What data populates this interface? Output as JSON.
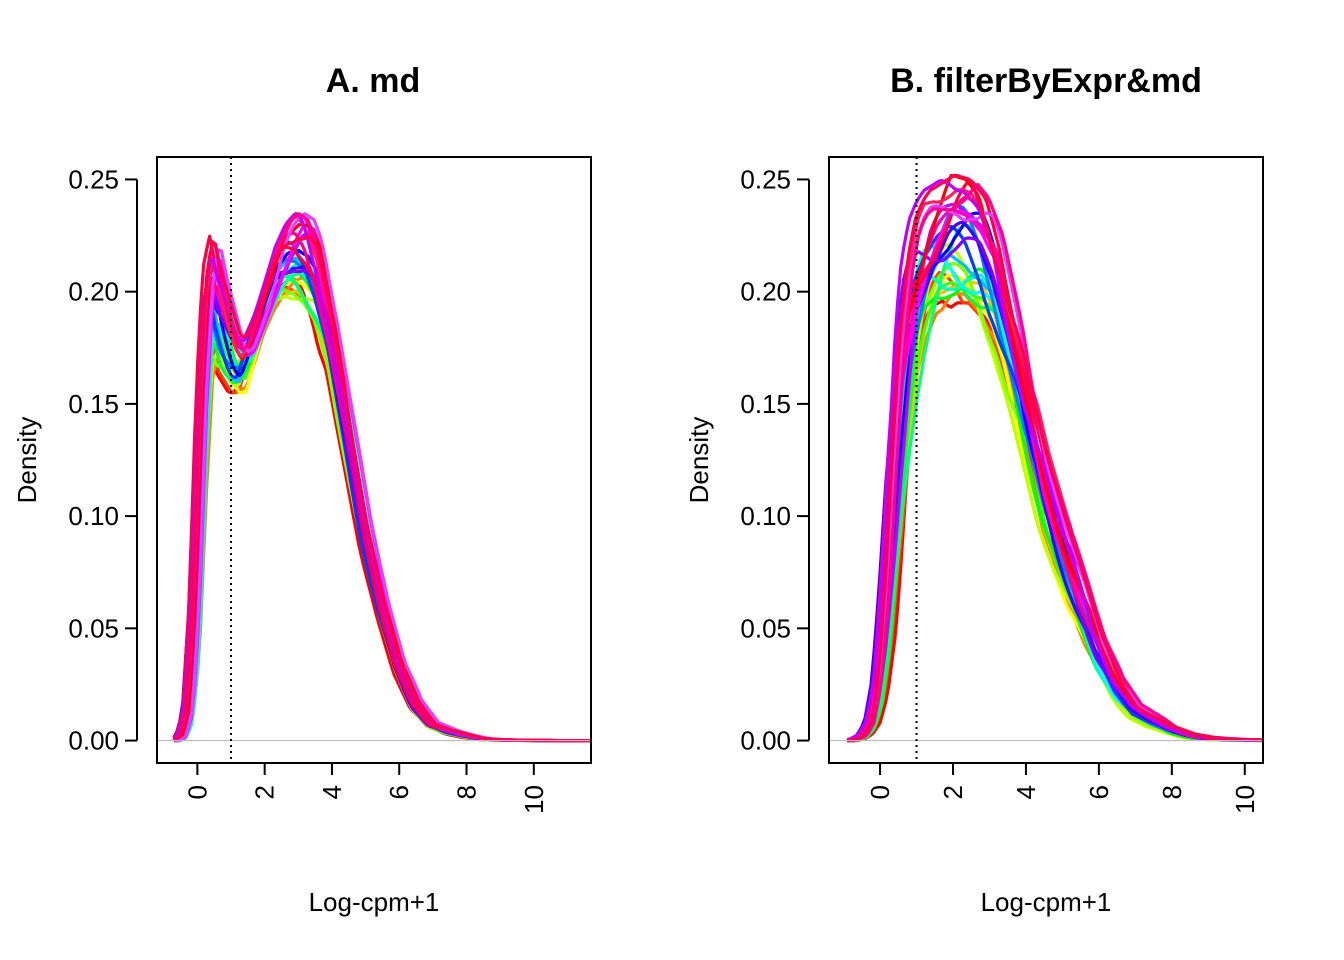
{
  "chart_data": [
    {
      "type": "line",
      "title": "A. md",
      "xlabel": "Log-cpm+1",
      "ylabel": "Density",
      "xlim": [
        -1.2,
        11.7
      ],
      "ylim": [
        -0.01,
        0.26
      ],
      "xticks": [
        0,
        2,
        4,
        6,
        8,
        10
      ],
      "xtick_labels": [
        "0",
        "2",
        "4",
        "6",
        "8",
        "10"
      ],
      "yticks": [
        0.0,
        0.05,
        0.1,
        0.15,
        0.2,
        0.25
      ],
      "ytick_labels": [
        "0.00",
        "0.05",
        "0.10",
        "0.15",
        "0.20",
        "0.25"
      ],
      "vline": 1,
      "vline_style": "dotted",
      "hline": 0,
      "hline_color": "#bebebe",
      "series_count": 30,
      "colors": [
        "#ff0000",
        "#ff4000",
        "#ff8000",
        "#ffbf00",
        "#ffff00",
        "#bfff00",
        "#80ff00",
        "#40ff00",
        "#00ff00",
        "#00ff40",
        "#00ff80",
        "#00ffbf",
        "#00ffff",
        "#00bfff",
        "#0080ff",
        "#0040ff",
        "#0000ff",
        "#4000ff",
        "#8000ff",
        "#bf00ff",
        "#ff00ff",
        "#ff00bf",
        "#ff0080",
        "#ff0040",
        "#ff0000",
        "#ff2060",
        "#e040ff",
        "#c000ff",
        "#ff0090",
        "#ff0050"
      ],
      "x": [
        -0.7,
        -0.5,
        -0.3,
        -0.1,
        0.1,
        0.3,
        0.5,
        0.7,
        0.9,
        1.1,
        1.3,
        1.5,
        1.8,
        2.1,
        2.4,
        2.7,
        3.0,
        3.3,
        3.6,
        4.0,
        4.5,
        5.0,
        5.5,
        6.0,
        6.5,
        7.0,
        7.5,
        8.0,
        8.5,
        9.0,
        9.5,
        10.0,
        10.5,
        11.0,
        11.7
      ],
      "envelope_low": [
        0.0,
        0.001,
        0.008,
        0.04,
        0.11,
        0.165,
        0.175,
        0.165,
        0.16,
        0.155,
        0.155,
        0.165,
        0.18,
        0.19,
        0.196,
        0.198,
        0.196,
        0.19,
        0.182,
        0.165,
        0.125,
        0.085,
        0.055,
        0.03,
        0.014,
        0.006,
        0.003,
        0.0015,
        0.0005,
        0.0002,
        0.0001,
        0.0,
        0.0,
        0.0,
        0.0
      ],
      "envelope_high": [
        0.0,
        0.002,
        0.015,
        0.07,
        0.16,
        0.21,
        0.225,
        0.21,
        0.2,
        0.19,
        0.18,
        0.18,
        0.19,
        0.205,
        0.22,
        0.23,
        0.235,
        0.232,
        0.22,
        0.19,
        0.145,
        0.1,
        0.065,
        0.036,
        0.018,
        0.008,
        0.005,
        0.003,
        0.001,
        0.0004,
        0.0002,
        0.0001,
        0.0,
        0.0,
        0.0
      ],
      "peak_1": {
        "x": 0.5,
        "y": 0.225
      },
      "peak_2": {
        "x": 3.2,
        "y": 0.235
      },
      "trough": {
        "x": 1.3,
        "y": 0.16
      }
    },
    {
      "type": "line",
      "title": "B. filterByExpr&md",
      "xlabel": "Log-cpm+1",
      "ylabel": "Density",
      "xlim": [
        -1.4,
        10.5
      ],
      "ylim": [
        -0.01,
        0.26
      ],
      "xticks": [
        0,
        2,
        4,
        6,
        8,
        10
      ],
      "xtick_labels": [
        "0",
        "2",
        "4",
        "6",
        "8",
        "10"
      ],
      "yticks": [
        0.0,
        0.05,
        0.1,
        0.15,
        0.2,
        0.25
      ],
      "ytick_labels": [
        "0.00",
        "0.05",
        "0.10",
        "0.15",
        "0.20",
        "0.25"
      ],
      "vline": 1,
      "vline_style": "dotted",
      "hline": 0,
      "hline_color": "#bebebe",
      "series_count": 30,
      "colors": [
        "#ff0000",
        "#ff4000",
        "#ff8000",
        "#ffbf00",
        "#ffff00",
        "#bfff00",
        "#80ff00",
        "#40ff00",
        "#00ff00",
        "#00ff40",
        "#00ff80",
        "#00ffbf",
        "#00ffff",
        "#00bfff",
        "#0080ff",
        "#0040ff",
        "#0000ff",
        "#4000ff",
        "#8000ff",
        "#bf00ff",
        "#ff00ff",
        "#ff00bf",
        "#ff0080",
        "#ff0040",
        "#ff0000",
        "#ff2060",
        "#e040ff",
        "#c000ff",
        "#ff0090",
        "#ff0050"
      ],
      "x": [
        -0.9,
        -0.7,
        -0.5,
        -0.3,
        -0.1,
        0.1,
        0.3,
        0.5,
        0.7,
        0.9,
        1.1,
        1.3,
        1.6,
        2.0,
        2.4,
        2.8,
        3.2,
        3.6,
        4.0,
        4.5,
        5.0,
        5.5,
        6.0,
        6.5,
        7.0,
        7.5,
        8.0,
        8.5,
        9.0,
        9.5,
        10.0,
        10.5
      ],
      "envelope_low": [
        0.0,
        0.0,
        0.001,
        0.003,
        0.008,
        0.02,
        0.045,
        0.08,
        0.115,
        0.145,
        0.165,
        0.178,
        0.19,
        0.195,
        0.195,
        0.188,
        0.172,
        0.15,
        0.125,
        0.095,
        0.072,
        0.05,
        0.03,
        0.017,
        0.01,
        0.006,
        0.003,
        0.0012,
        0.0005,
        0.0002,
        0.0001,
        0.0
      ],
      "envelope_high": [
        0.0,
        0.001,
        0.003,
        0.01,
        0.03,
        0.075,
        0.135,
        0.185,
        0.215,
        0.232,
        0.24,
        0.245,
        0.248,
        0.252,
        0.25,
        0.242,
        0.225,
        0.195,
        0.162,
        0.128,
        0.1,
        0.075,
        0.048,
        0.028,
        0.016,
        0.011,
        0.006,
        0.003,
        0.0015,
        0.0008,
        0.0004,
        0.0002
      ],
      "peak": {
        "x": 2.0,
        "y": 0.252
      }
    }
  ]
}
